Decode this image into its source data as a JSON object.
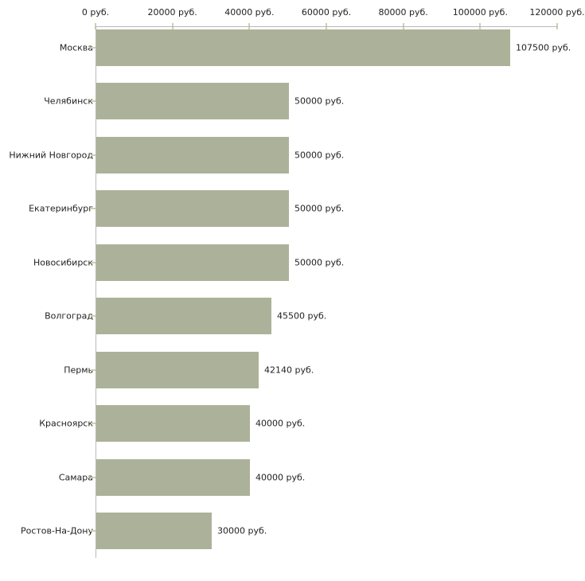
{
  "chart_data": {
    "type": "bar",
    "orientation": "horizontal",
    "title": "",
    "xlabel": "",
    "ylabel": "",
    "grid": false,
    "legend": false,
    "categories": [
      "Москва",
      "Челябинск",
      "Нижний Новгород",
      "Екатеринбург",
      "Новосибирск",
      "Волгоград",
      "Пермь",
      "Красноярск",
      "Самара",
      "Ростов-На-Дону"
    ],
    "values": [
      107500,
      50000,
      50000,
      50000,
      50000,
      45500,
      42140,
      40000,
      40000,
      30000
    ],
    "value_labels": [
      "107500 руб.",
      "50000 руб.",
      "50000 руб.",
      "50000 руб.",
      "50000 руб.",
      "45500 руб.",
      "42140 руб.",
      "40000 руб.",
      "40000 руб.",
      "30000 руб."
    ],
    "xlim": [
      0,
      120000
    ],
    "x_ticks": [
      0,
      20000,
      40000,
      60000,
      80000,
      100000,
      120000
    ],
    "x_tick_labels": [
      "0 руб.",
      "20000 руб.",
      "40000 руб.",
      "60000 руб.",
      "80000 руб.",
      "100000 руб.",
      "120000 руб."
    ],
    "colors": {
      "bar": "#abb299",
      "axis_line": "#b9b9b9",
      "tick": "#cfcfb0",
      "text": "#222222",
      "background": "#ffffff"
    }
  }
}
